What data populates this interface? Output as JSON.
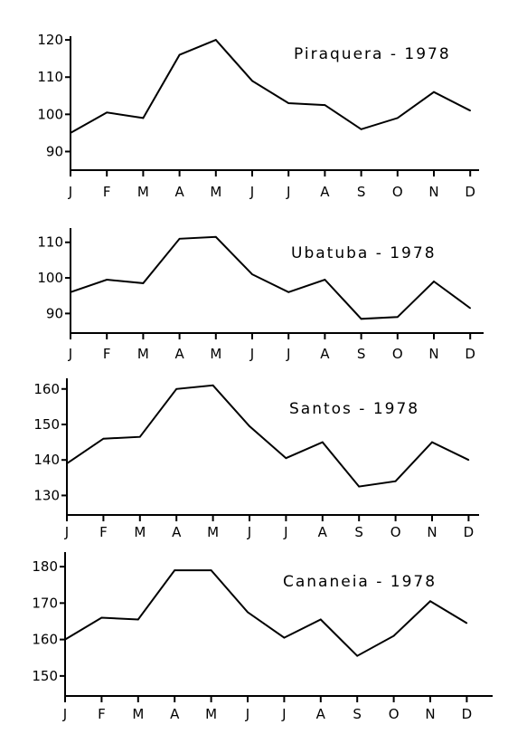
{
  "chart_data": [
    {
      "type": "line",
      "title": "Piraquera - 1978",
      "categories": [
        "J",
        "F",
        "M",
        "A",
        "M",
        "J",
        "J",
        "A",
        "S",
        "O",
        "N",
        "D"
      ],
      "values": [
        95,
        100.5,
        99,
        116,
        120,
        109,
        103,
        102.5,
        96,
        99,
        106,
        101
      ],
      "yticks": [
        "90",
        "100",
        "110",
        "120"
      ],
      "ylim": [
        85,
        121
      ],
      "grid": false
    },
    {
      "type": "line",
      "title": "Ubatuba - 1978",
      "categories": [
        "J",
        "F",
        "M",
        "A",
        "M",
        "J",
        "J",
        "A",
        "S",
        "O",
        "N",
        "D"
      ],
      "values": [
        96,
        99.5,
        98.5,
        111,
        111.5,
        101,
        96,
        99.5,
        88.5,
        89,
        99,
        91.5
      ],
      "yticks": [
        "90",
        "100",
        "110"
      ],
      "ylim": [
        84.5,
        114
      ],
      "grid": false
    },
    {
      "type": "line",
      "title": "Santos - 1978",
      "categories": [
        "J",
        "F",
        "M",
        "A",
        "M",
        "J",
        "J",
        "A",
        "S",
        "O",
        "N",
        "D"
      ],
      "values": [
        139,
        146,
        146.5,
        160,
        161,
        149.5,
        140.5,
        145,
        132.5,
        134,
        145,
        140
      ],
      "yticks": [
        "130",
        "140",
        "150",
        "160"
      ],
      "ylim": [
        124.5,
        163
      ],
      "grid": false
    },
    {
      "type": "line",
      "title": "Cananeia - 1978",
      "categories": [
        "J",
        "F",
        "M",
        "A",
        "M",
        "J",
        "J",
        "A",
        "S",
        "O",
        "N",
        "D"
      ],
      "values": [
        160,
        166,
        165.5,
        179,
        179,
        167.5,
        160.5,
        165.5,
        155.5,
        161,
        170.5,
        164.5
      ],
      "yticks": [
        "150",
        "160",
        "170",
        "180"
      ],
      "ylim": [
        144.5,
        184
      ],
      "grid": false
    }
  ]
}
